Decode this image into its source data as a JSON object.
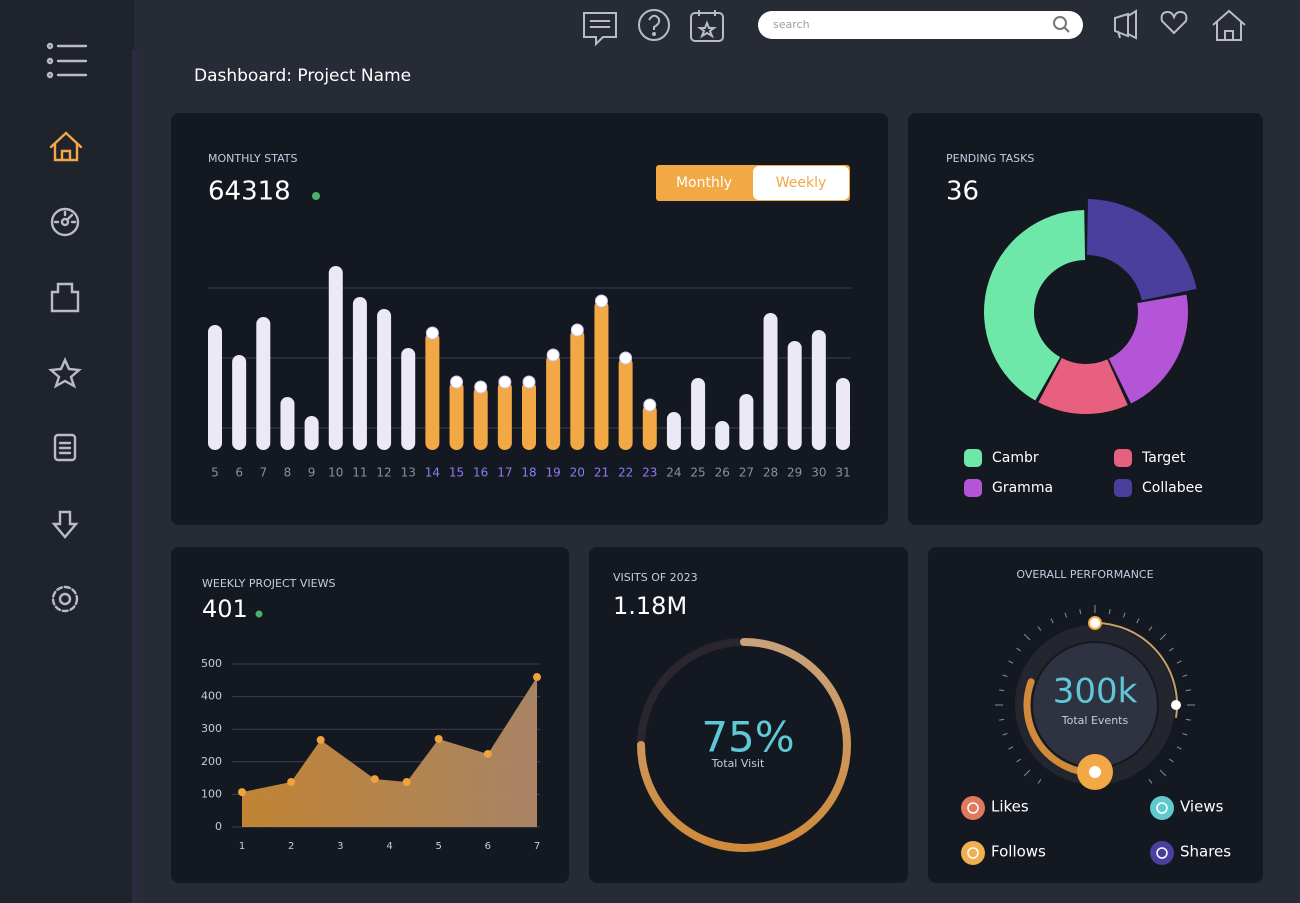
{
  "header": {
    "title": "Dashboard: Project Name",
    "search_placeholder": "search"
  },
  "chart_data": [
    {
      "type": "bar",
      "title": "MONTHLY STATS",
      "total": 64318,
      "toggle": {
        "options": [
          "Monthly",
          "Weekly"
        ],
        "active": 0
      },
      "categories": [
        "5",
        "6",
        "7",
        "8",
        "9",
        "10",
        "11",
        "12",
        "13",
        "14",
        "15",
        "16",
        "17",
        "18",
        "19",
        "20",
        "21",
        "22",
        "23",
        "24",
        "25",
        "26",
        "27",
        "28",
        "29",
        "30",
        "31"
      ],
      "values": [
        125,
        95,
        133,
        53,
        34,
        184,
        153,
        141,
        102,
        118,
        69,
        64,
        69,
        69,
        96,
        121,
        150,
        93,
        46,
        38,
        72,
        29,
        56,
        137,
        109,
        120,
        72
      ],
      "color": "#ebe9f5",
      "bar_colors": [
        "#ebe9f5",
        "#ebe9f5",
        "#ebe9f5",
        "#ebe9f5",
        "#ebe9f5",
        "#ebe9f5",
        "#ebe9f5",
        "#ebe9f5",
        "#ebe9f5",
        "#f2a845",
        "#f2a845",
        "#f2a845",
        "#f2a845",
        "#f2a845",
        "#f2a845",
        "#f2a845",
        "#f2a845",
        "#f2a845",
        "#f2a845",
        "#ebe9f5",
        "#ebe9f5",
        "#ebe9f5",
        "#ebe9f5",
        "#ebe9f5",
        "#ebe9f5",
        "#ebe9f5",
        "#ebe9f5"
      ],
      "ylim": [
        0,
        190
      ],
      "yticks": [
        22,
        92,
        162
      ],
      "tick_labels": false,
      "grid": true
    },
    {
      "type": "donut",
      "title": "PENDING TASKS",
      "total": 36,
      "categories": [
        "Cambr",
        "Target",
        "Gramma",
        "Collabee"
      ],
      "values": [
        42,
        15,
        21,
        22
      ],
      "colors": [
        "#6de8a9",
        "#e8607f",
        "#b455d8",
        "#4b3f9e"
      ],
      "legend": "bottom"
    },
    {
      "type": "area",
      "title": "WEEKLY PROJECT VIEWS",
      "total": 401,
      "x": [
        1,
        2,
        2.6,
        3.7,
        4.35,
        5,
        6,
        7
      ],
      "values": [
        107,
        138,
        267,
        147,
        138,
        270,
        224,
        460
      ],
      "xlim": [
        1,
        7
      ],
      "xticks": [
        1,
        2,
        3,
        4,
        5,
        6,
        7
      ],
      "ylim": [
        0,
        500
      ],
      "yticks": [
        0,
        100,
        200,
        300,
        400,
        500
      ],
      "color": "#f0a23c",
      "grid": true
    },
    {
      "type": "gauge",
      "title": "VISITS OF 2023",
      "total": "1.18M",
      "value": 75,
      "value_label": "75%",
      "label": "Total Visit",
      "ylim": [
        0,
        100
      ],
      "color": "#d3955a"
    },
    {
      "type": "performance",
      "title": "OVERALL PERFORMANCE",
      "value_text": "300k",
      "label": "Total Events",
      "legend": [
        {
          "name": "Likes",
          "color": "#e07a5f"
        },
        {
          "name": "Views",
          "color": "#5fc8d0"
        },
        {
          "name": "Follows",
          "color": "#f0b050"
        },
        {
          "name": "Shares",
          "color": "#4b3f9e"
        }
      ]
    }
  ]
}
